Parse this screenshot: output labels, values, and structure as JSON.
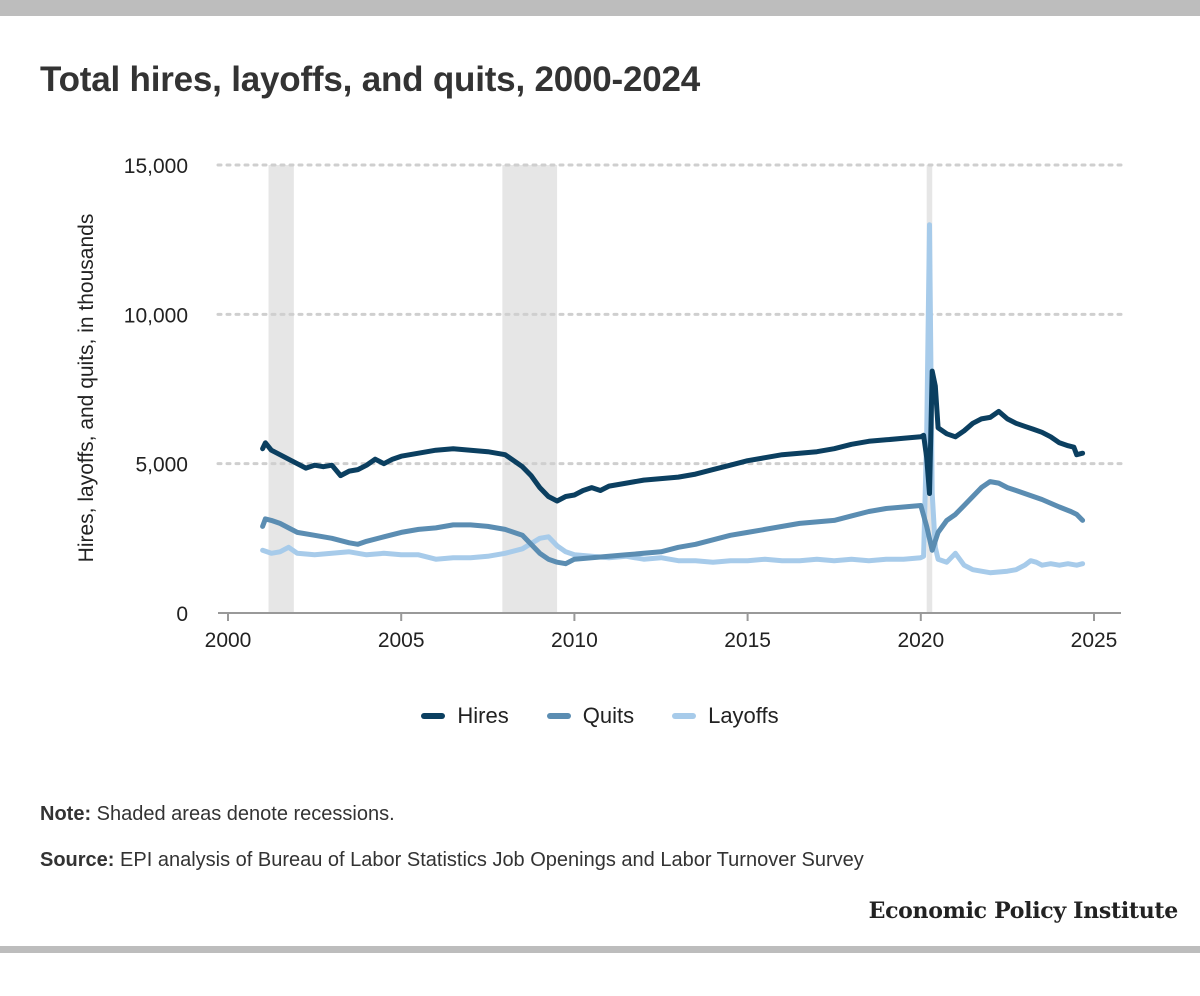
{
  "title": "Total hires, layoffs, and quits, 2000-2024",
  "note_label": "Note:",
  "note_text": " Shaded areas denote recessions.",
  "source_label": "Source:",
  "source_text": " EPI analysis of Bureau of Labor Statistics Job Openings and Labor Turnover Survey",
  "brand": "Economic Policy Institute",
  "colors": {
    "hires": "#0b3f60",
    "quits": "#5b8db2",
    "layoffs": "#a7cbea",
    "recession": "#e6e6e6",
    "grid": "#cfcfcf"
  },
  "chart_data": {
    "type": "line",
    "title": "Total hires, layoffs, and quits, 2000-2024",
    "xlabel": "",
    "ylabel": "Hires, layoffs, and quits, in thousands",
    "xlim": [
      2000,
      2025.5
    ],
    "ylim": [
      0,
      15000
    ],
    "x_ticks": [
      2000,
      2005,
      2010,
      2015,
      2020,
      2025
    ],
    "x_tick_labels": [
      "2000",
      "2005",
      "2010",
      "2015",
      "2020",
      "2025"
    ],
    "y_ticks": [
      0,
      5000,
      10000,
      15000
    ],
    "y_tick_labels": [
      "0",
      "5,000",
      "10,000",
      "15,000"
    ],
    "grid": "horizontal dotted",
    "legend": "bottom-center",
    "recessions": [
      [
        2001.17,
        2001.9
      ],
      [
        2007.92,
        2009.5
      ],
      [
        2020.17,
        2020.33
      ]
    ],
    "series": [
      {
        "name": "Hires",
        "color": "#0b3f60",
        "points": [
          [
            2001.0,
            5500
          ],
          [
            2001.08,
            5700
          ],
          [
            2001.25,
            5450
          ],
          [
            2001.5,
            5300
          ],
          [
            2001.75,
            5150
          ],
          [
            2002.0,
            5000
          ],
          [
            2002.25,
            4850
          ],
          [
            2002.5,
            4950
          ],
          [
            2002.75,
            4900
          ],
          [
            2003.0,
            4950
          ],
          [
            2003.25,
            4600
          ],
          [
            2003.5,
            4750
          ],
          [
            2003.75,
            4800
          ],
          [
            2004.0,
            4950
          ],
          [
            2004.25,
            5150
          ],
          [
            2004.5,
            5000
          ],
          [
            2004.75,
            5150
          ],
          [
            2005.0,
            5250
          ],
          [
            2005.5,
            5350
          ],
          [
            2006.0,
            5450
          ],
          [
            2006.5,
            5500
          ],
          [
            2007.0,
            5450
          ],
          [
            2007.5,
            5400
          ],
          [
            2008.0,
            5300
          ],
          [
            2008.25,
            5100
          ],
          [
            2008.5,
            4900
          ],
          [
            2008.75,
            4600
          ],
          [
            2009.0,
            4200
          ],
          [
            2009.25,
            3900
          ],
          [
            2009.5,
            3750
          ],
          [
            2009.75,
            3900
          ],
          [
            2010.0,
            3950
          ],
          [
            2010.25,
            4100
          ],
          [
            2010.5,
            4200
          ],
          [
            2010.75,
            4100
          ],
          [
            2011.0,
            4250
          ],
          [
            2011.5,
            4350
          ],
          [
            2012.0,
            4450
          ],
          [
            2012.5,
            4500
          ],
          [
            2013.0,
            4550
          ],
          [
            2013.5,
            4650
          ],
          [
            2014.0,
            4800
          ],
          [
            2014.5,
            4950
          ],
          [
            2015.0,
            5100
          ],
          [
            2015.5,
            5200
          ],
          [
            2016.0,
            5300
          ],
          [
            2016.5,
            5350
          ],
          [
            2017.0,
            5400
          ],
          [
            2017.5,
            5500
          ],
          [
            2018.0,
            5650
          ],
          [
            2018.5,
            5750
          ],
          [
            2019.0,
            5800
          ],
          [
            2019.5,
            5850
          ],
          [
            2020.0,
            5900
          ],
          [
            2020.08,
            5950
          ],
          [
            2020.17,
            5200
          ],
          [
            2020.25,
            4000
          ],
          [
            2020.33,
            8100
          ],
          [
            2020.42,
            7600
          ],
          [
            2020.5,
            6200
          ],
          [
            2020.75,
            6000
          ],
          [
            2021.0,
            5900
          ],
          [
            2021.25,
            6100
          ],
          [
            2021.5,
            6350
          ],
          [
            2021.75,
            6500
          ],
          [
            2022.0,
            6550
          ],
          [
            2022.25,
            6750
          ],
          [
            2022.5,
            6500
          ],
          [
            2022.75,
            6350
          ],
          [
            2023.0,
            6250
          ],
          [
            2023.25,
            6150
          ],
          [
            2023.5,
            6050
          ],
          [
            2023.75,
            5900
          ],
          [
            2024.0,
            5700
          ],
          [
            2024.25,
            5600
          ],
          [
            2024.42,
            5550
          ],
          [
            2024.5,
            5300
          ],
          [
            2024.67,
            5350
          ]
        ]
      },
      {
        "name": "Quits",
        "color": "#5b8db2",
        "points": [
          [
            2001.0,
            2900
          ],
          [
            2001.08,
            3150
          ],
          [
            2001.25,
            3100
          ],
          [
            2001.5,
            3000
          ],
          [
            2001.75,
            2850
          ],
          [
            2002.0,
            2700
          ],
          [
            2002.5,
            2600
          ],
          [
            2003.0,
            2500
          ],
          [
            2003.5,
            2350
          ],
          [
            2003.75,
            2300
          ],
          [
            2004.0,
            2400
          ],
          [
            2004.5,
            2550
          ],
          [
            2005.0,
            2700
          ],
          [
            2005.5,
            2800
          ],
          [
            2006.0,
            2850
          ],
          [
            2006.5,
            2950
          ],
          [
            2007.0,
            2950
          ],
          [
            2007.5,
            2900
          ],
          [
            2008.0,
            2800
          ],
          [
            2008.5,
            2600
          ],
          [
            2008.75,
            2300
          ],
          [
            2009.0,
            2000
          ],
          [
            2009.25,
            1800
          ],
          [
            2009.5,
            1700
          ],
          [
            2009.75,
            1650
          ],
          [
            2010.0,
            1800
          ],
          [
            2010.5,
            1850
          ],
          [
            2011.0,
            1900
          ],
          [
            2011.5,
            1950
          ],
          [
            2012.0,
            2000
          ],
          [
            2012.5,
            2050
          ],
          [
            2013.0,
            2200
          ],
          [
            2013.5,
            2300
          ],
          [
            2014.0,
            2450
          ],
          [
            2014.5,
            2600
          ],
          [
            2015.0,
            2700
          ],
          [
            2015.5,
            2800
          ],
          [
            2016.0,
            2900
          ],
          [
            2016.5,
            3000
          ],
          [
            2017.0,
            3050
          ],
          [
            2017.5,
            3100
          ],
          [
            2018.0,
            3250
          ],
          [
            2018.5,
            3400
          ],
          [
            2019.0,
            3500
          ],
          [
            2019.5,
            3550
          ],
          [
            2020.0,
            3600
          ],
          [
            2020.17,
            2900
          ],
          [
            2020.33,
            2100
          ],
          [
            2020.5,
            2700
          ],
          [
            2020.75,
            3100
          ],
          [
            2021.0,
            3300
          ],
          [
            2021.25,
            3600
          ],
          [
            2021.5,
            3900
          ],
          [
            2021.75,
            4200
          ],
          [
            2022.0,
            4400
          ],
          [
            2022.25,
            4350
          ],
          [
            2022.5,
            4200
          ],
          [
            2022.75,
            4100
          ],
          [
            2023.0,
            4000
          ],
          [
            2023.5,
            3800
          ],
          [
            2024.0,
            3550
          ],
          [
            2024.33,
            3400
          ],
          [
            2024.5,
            3300
          ],
          [
            2024.67,
            3100
          ]
        ]
      },
      {
        "name": "Layoffs",
        "color": "#a7cbea",
        "points": [
          [
            2001.0,
            2100
          ],
          [
            2001.25,
            2000
          ],
          [
            2001.5,
            2050
          ],
          [
            2001.75,
            2200
          ],
          [
            2002.0,
            2000
          ],
          [
            2002.5,
            1950
          ],
          [
            2003.0,
            2000
          ],
          [
            2003.5,
            2050
          ],
          [
            2004.0,
            1950
          ],
          [
            2004.5,
            2000
          ],
          [
            2005.0,
            1950
          ],
          [
            2005.5,
            1950
          ],
          [
            2006.0,
            1800
          ],
          [
            2006.5,
            1850
          ],
          [
            2007.0,
            1850
          ],
          [
            2007.5,
            1900
          ],
          [
            2008.0,
            2000
          ],
          [
            2008.5,
            2150
          ],
          [
            2009.0,
            2500
          ],
          [
            2009.25,
            2550
          ],
          [
            2009.5,
            2250
          ],
          [
            2009.75,
            2050
          ],
          [
            2010.0,
            1950
          ],
          [
            2010.5,
            1900
          ],
          [
            2011.0,
            1850
          ],
          [
            2011.5,
            1900
          ],
          [
            2012.0,
            1800
          ],
          [
            2012.5,
            1850
          ],
          [
            2013.0,
            1750
          ],
          [
            2013.5,
            1750
          ],
          [
            2014.0,
            1700
          ],
          [
            2014.5,
            1750
          ],
          [
            2015.0,
            1750
          ],
          [
            2015.5,
            1800
          ],
          [
            2016.0,
            1750
          ],
          [
            2016.5,
            1750
          ],
          [
            2017.0,
            1800
          ],
          [
            2017.5,
            1750
          ],
          [
            2018.0,
            1800
          ],
          [
            2018.5,
            1750
          ],
          [
            2019.0,
            1800
          ],
          [
            2019.5,
            1800
          ],
          [
            2020.0,
            1850
          ],
          [
            2020.08,
            1900
          ],
          [
            2020.17,
            6000
          ],
          [
            2020.25,
            13000
          ],
          [
            2020.33,
            4000
          ],
          [
            2020.42,
            2200
          ],
          [
            2020.5,
            1800
          ],
          [
            2020.75,
            1700
          ],
          [
            2021.0,
            2000
          ],
          [
            2021.25,
            1600
          ],
          [
            2021.5,
            1450
          ],
          [
            2021.75,
            1400
          ],
          [
            2022.0,
            1350
          ],
          [
            2022.5,
            1400
          ],
          [
            2022.75,
            1450
          ],
          [
            2023.0,
            1600
          ],
          [
            2023.17,
            1750
          ],
          [
            2023.33,
            1700
          ],
          [
            2023.5,
            1600
          ],
          [
            2023.75,
            1650
          ],
          [
            2024.0,
            1600
          ],
          [
            2024.25,
            1650
          ],
          [
            2024.5,
            1600
          ],
          [
            2024.67,
            1650
          ]
        ]
      }
    ]
  }
}
